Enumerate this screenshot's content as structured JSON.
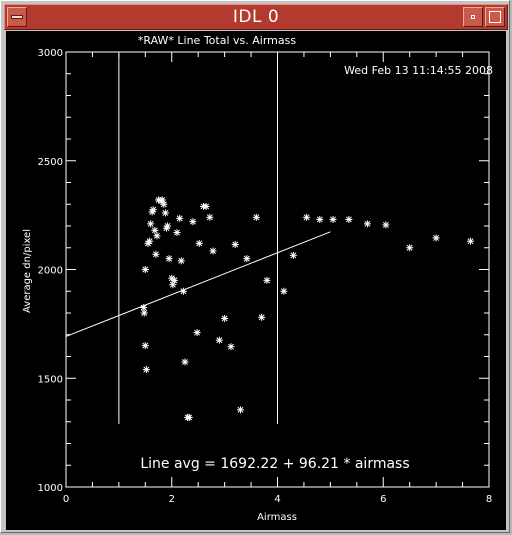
{
  "window": {
    "title": "IDL 0",
    "minimize_icon": "minimize-icon",
    "maximize_icon": "maximize-icon",
    "menu_icon": "window-menu-icon",
    "titlebar_color": "#b23a2e"
  },
  "timestamp": "Wed Feb 13 11:14:55 2008",
  "fit_label": "Line avg = 1692.22 + 96.21 * airmass",
  "chart_data": {
    "type": "scatter",
    "title": "*RAW* Line Total vs. Airmass",
    "xlabel": "Airmass",
    "ylabel": "Average dn/pixel",
    "xlim": [
      0,
      8
    ],
    "ylim": [
      1000,
      3000
    ],
    "xticks": [
      0,
      2,
      4,
      6,
      8
    ],
    "yticks": [
      1000,
      1500,
      2000,
      2500,
      3000
    ],
    "marker": "*",
    "background": "#000000",
    "foreground": "#ffffff",
    "vertical_lines_x": [
      1,
      4
    ],
    "vertical_lines_y_range": [
      1290,
      2990
    ],
    "fit": {
      "intercept": 1692.22,
      "slope": 96.21,
      "x_range": [
        0,
        5
      ]
    },
    "points": [
      [
        1.47,
        1825
      ],
      [
        1.48,
        1800
      ],
      [
        1.5,
        1650
      ],
      [
        1.52,
        1540
      ],
      [
        1.5,
        2000
      ],
      [
        1.55,
        2120
      ],
      [
        1.58,
        2130
      ],
      [
        1.6,
        2210
      ],
      [
        1.63,
        2265
      ],
      [
        1.65,
        2275
      ],
      [
        1.68,
        2180
      ],
      [
        1.7,
        2070
      ],
      [
        1.72,
        2155
      ],
      [
        1.75,
        2320
      ],
      [
        1.8,
        2315
      ],
      [
        1.82,
        2320
      ],
      [
        1.85,
        2300
      ],
      [
        1.88,
        2260
      ],
      [
        1.9,
        2190
      ],
      [
        1.92,
        2200
      ],
      [
        1.95,
        2050
      ],
      [
        2.0,
        1960
      ],
      [
        2.02,
        1930
      ],
      [
        2.05,
        1950
      ],
      [
        2.1,
        2170
      ],
      [
        2.15,
        2235
      ],
      [
        2.18,
        2040
      ],
      [
        2.22,
        1900
      ],
      [
        2.25,
        1575
      ],
      [
        2.3,
        1320
      ],
      [
        2.33,
        1320
      ],
      [
        2.4,
        2220
      ],
      [
        2.48,
        1710
      ],
      [
        2.52,
        2120
      ],
      [
        2.6,
        2290
      ],
      [
        2.65,
        2290
      ],
      [
        2.72,
        2240
      ],
      [
        2.78,
        2085
      ],
      [
        2.9,
        1675
      ],
      [
        3.0,
        1775
      ],
      [
        3.12,
        1645
      ],
      [
        3.2,
        2115
      ],
      [
        3.3,
        1355
      ],
      [
        3.42,
        2050
      ],
      [
        3.6,
        2240
      ],
      [
        3.7,
        1780
      ],
      [
        3.8,
        1950
      ],
      [
        4.12,
        1900
      ],
      [
        4.3,
        2065
      ],
      [
        4.55,
        2240
      ],
      [
        4.8,
        2230
      ],
      [
        5.05,
        2230
      ],
      [
        5.35,
        2230
      ],
      [
        5.7,
        2210
      ],
      [
        6.05,
        2205
      ],
      [
        6.5,
        2100
      ],
      [
        7.0,
        2145
      ],
      [
        7.65,
        2130
      ]
    ]
  }
}
